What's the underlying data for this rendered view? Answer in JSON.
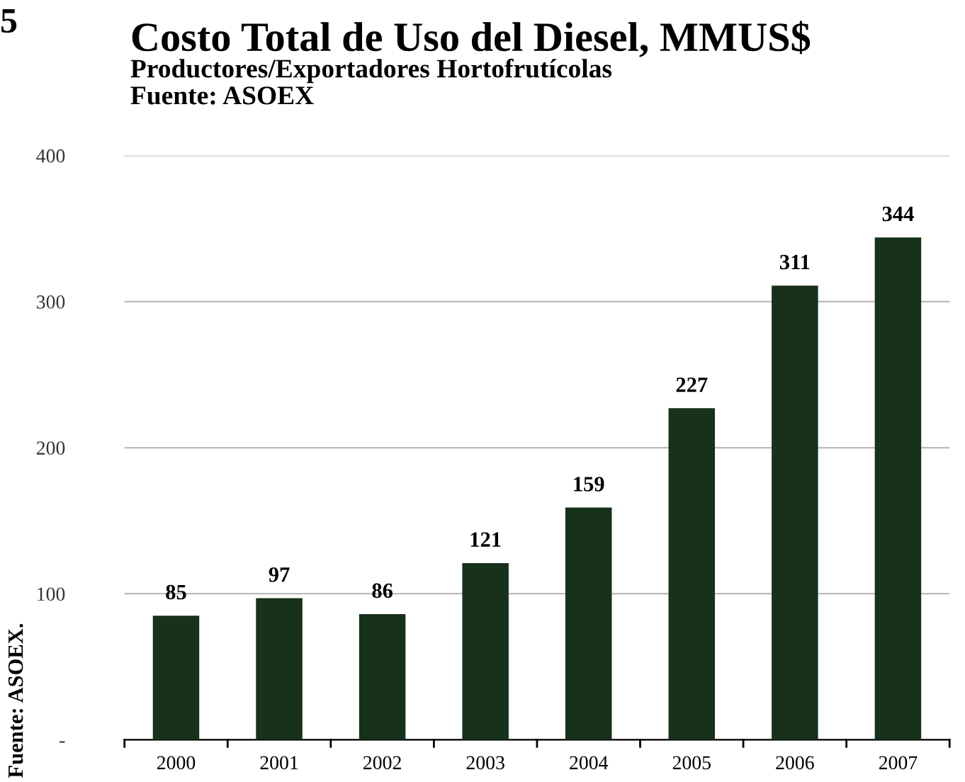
{
  "chart_data": {
    "type": "bar",
    "title": "Costo Total de Uso del Diesel, MMUS$",
    "subtitle": "Productores/Exportadores Hortofrutícolas\nFuente: ASOEX",
    "categories": [
      "2000",
      "2001",
      "2002",
      "2003",
      "2004",
      "2005",
      "2006",
      "2007"
    ],
    "values": [
      85,
      97,
      86,
      121,
      159,
      227,
      311,
      344
    ],
    "color": "#17311b",
    "ylim": [
      0,
      400
    ],
    "yticks": [
      {
        "value": 0,
        "label": "-"
      },
      100,
      200,
      300,
      400
    ],
    "grid": "y",
    "data_labels": true,
    "annotations": [
      "5",
      "Fuente: ASOEX."
    ]
  }
}
